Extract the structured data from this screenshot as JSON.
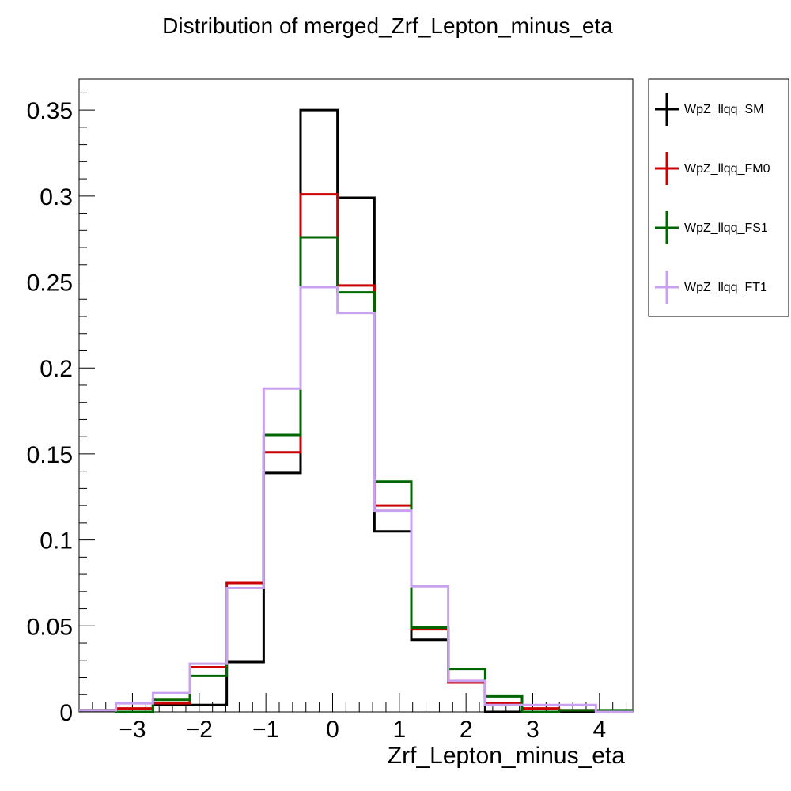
{
  "chart_data": {
    "type": "step-histogram",
    "title": "Distribution of merged_Zrf_Lepton_minus_eta",
    "xlabel": "Zrf_Lepton_minus_eta",
    "ylabel": "",
    "xlim": [
      -3.8,
      4.5
    ],
    "ylim": [
      0,
      0.368
    ],
    "grid": false,
    "legend_position": "right",
    "x_ticks": [
      -3,
      -2,
      -1,
      0,
      1,
      2,
      3,
      4
    ],
    "x_tick_labels": [
      "−3",
      "−2",
      "−1",
      "0",
      "1",
      "2",
      "3",
      "4"
    ],
    "y_ticks": [
      0,
      0.05,
      0.1,
      0.15,
      0.2,
      0.25,
      0.3,
      0.35
    ],
    "y_tick_labels": [
      "0",
      "0.05",
      "0.1",
      "0.15",
      "0.2",
      "0.25",
      "0.3",
      "0.35"
    ],
    "bin_edges": [
      -3.8,
      -3.247,
      -2.693,
      -2.14,
      -1.587,
      -1.033,
      -0.48,
      0.073,
      0.627,
      1.18,
      1.733,
      2.287,
      2.84,
      3.393,
      3.947,
      4.5
    ],
    "series": [
      {
        "name": "WpZ_llqq_SM",
        "color": "#000000",
        "values": [
          0.001,
          0.0,
          0.004,
          0.004,
          0.029,
          0.139,
          0.35,
          0.299,
          0.105,
          0.042,
          0.017,
          0.0,
          0.0,
          0.0,
          0.0
        ]
      },
      {
        "name": "WpZ_llqq_FM0",
        "color": "#cc0000",
        "values": [
          0.001,
          0.002,
          0.005,
          0.026,
          0.075,
          0.151,
          0.301,
          0.248,
          0.12,
          0.048,
          0.017,
          0.005,
          0.002,
          0.001,
          0.0
        ]
      },
      {
        "name": "WpZ_llqq_FS1",
        "color": "#006600",
        "values": [
          0.001,
          0.0,
          0.007,
          0.021,
          0.072,
          0.161,
          0.276,
          0.244,
          0.134,
          0.049,
          0.025,
          0.009,
          0.0,
          0.001,
          0.001
        ]
      },
      {
        "name": "WpZ_llqq_FT1",
        "color": "#c8a2f0",
        "values": [
          0.001,
          0.005,
          0.011,
          0.028,
          0.072,
          0.188,
          0.247,
          0.232,
          0.117,
          0.073,
          0.018,
          0.004,
          0.004,
          0.004,
          0.0
        ]
      }
    ]
  }
}
